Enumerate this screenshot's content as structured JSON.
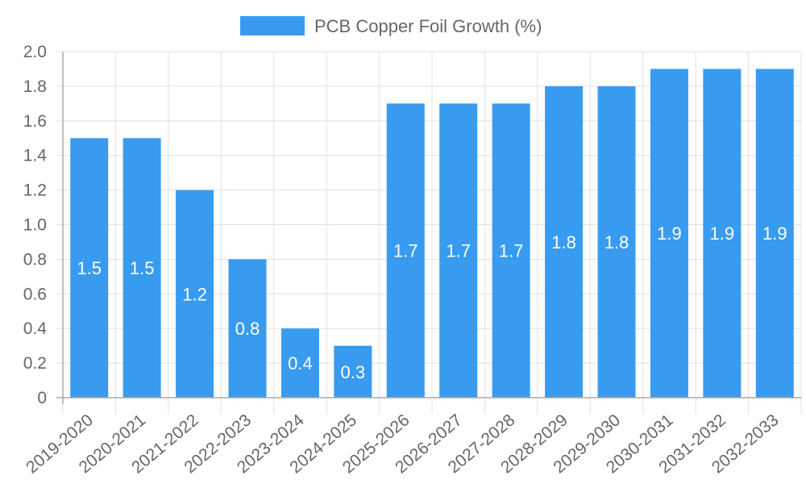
{
  "chart_data": {
    "type": "bar",
    "title": "",
    "xlabel": "",
    "ylabel": "",
    "legend": {
      "position": "top",
      "entries": [
        "PCB Copper Foil Growth (%)"
      ]
    },
    "categories": [
      "2019-2020",
      "2020-2021",
      "2021-2022",
      "2022-2023",
      "2023-2024",
      "2024-2025",
      "2025-2026",
      "2026-2027",
      "2027-2028",
      "2028-2029",
      "2029-2030",
      "2030-2031",
      "2031-2032",
      "2032-2033"
    ],
    "series": [
      {
        "name": "PCB Copper Foil Growth (%)",
        "color": "#389bf0",
        "values": [
          1.5,
          1.5,
          1.2,
          0.8,
          0.4,
          0.3,
          1.7,
          1.7,
          1.7,
          1.8,
          1.8,
          1.9,
          1.9,
          1.9
        ]
      }
    ],
    "data_labels": [
      "1.5",
      "1.5",
      "1.2",
      "0.8",
      "0.4",
      "0.3",
      "1.7",
      "1.7",
      "1.7",
      "1.8",
      "1.8",
      "1.9",
      "1.9",
      "1.9"
    ],
    "ylim": [
      0,
      2.0
    ],
    "yticks": [
      "0",
      "0.2",
      "0.4",
      "0.6",
      "0.8",
      "1.0",
      "1.2",
      "1.4",
      "1.6",
      "1.8",
      "2.0"
    ],
    "grid": true
  },
  "colors": {
    "bar": "#389bf0",
    "grid": "#e0e0e0",
    "axis": "#aaaaaa",
    "text": "#666666",
    "label": "#ffffff"
  }
}
